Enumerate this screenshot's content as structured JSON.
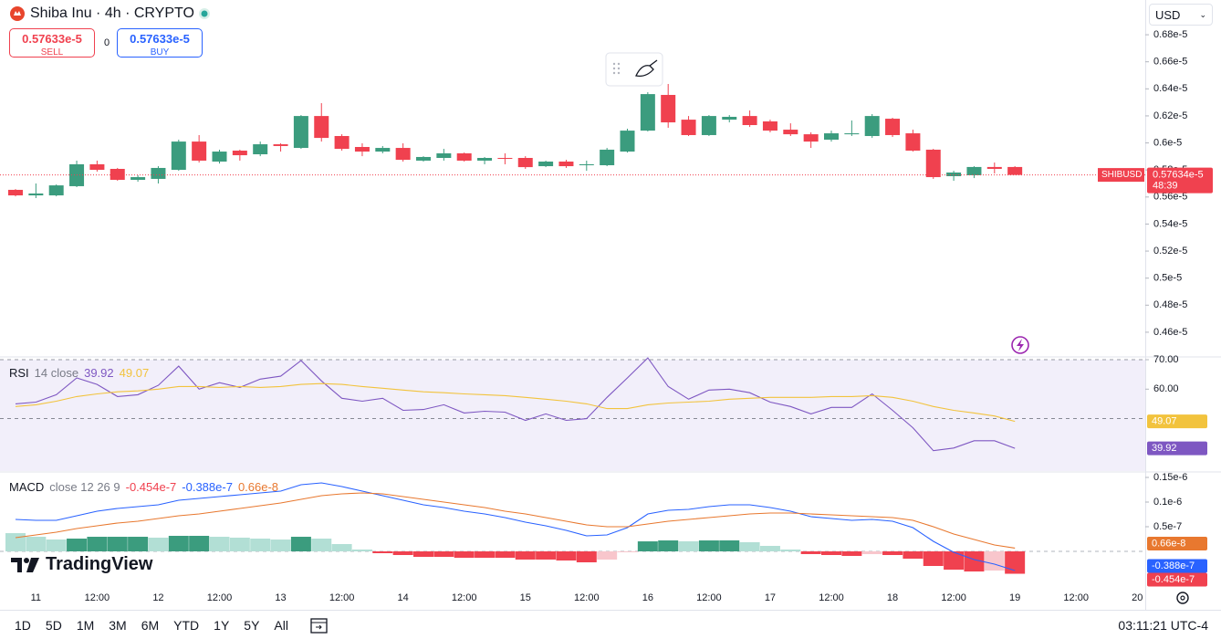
{
  "header": {
    "symbol": "Shiba Inu · 4h · CRYPTO",
    "sell_price": "0.57633e-5",
    "sell_label": "SELL",
    "spread": "0",
    "buy_price": "0.57633e-5",
    "buy_label": "BUY",
    "currency": "USD"
  },
  "watermark": "TradingView",
  "toolbar": {
    "ranges": [
      "1D",
      "5D",
      "1M",
      "3M",
      "6M",
      "YTD",
      "1Y",
      "5Y",
      "All"
    ],
    "clock": "03:11:21 UTC-4"
  },
  "chart_data": [
    {
      "type": "candlestick",
      "up_color": "#3b9c7e",
      "down_color": "#f0414f",
      "categories": [
        null,
        "11",
        null,
        null,
        "12:00",
        null,
        null,
        "12",
        null,
        null,
        "12:00",
        null,
        null,
        "13",
        null,
        null,
        "12:00",
        null,
        null,
        "14",
        null,
        null,
        "12:00",
        null,
        null,
        "15",
        null,
        null,
        "12:00",
        null,
        null,
        "16",
        null,
        null,
        "12:00",
        null,
        null,
        "17",
        null,
        null,
        "12:00",
        null,
        null,
        "18",
        null,
        null,
        "12:00",
        null,
        null,
        "19",
        null,
        null,
        "12:00",
        null,
        null,
        "20"
      ],
      "open": [
        5.653e-06,
        5.612e-06,
        5.612e-06,
        5.68e-06,
        5.842e-06,
        5.808e-06,
        5.727e-06,
        5.734e-06,
        5.801e-06,
        6.01e-06,
        5.862e-06,
        5.943e-06,
        5.916e-06,
        5.99e-06,
        5.963e-06,
        6.199e-06,
        6.051e-06,
        5.97e-06,
        5.936e-06,
        5.963e-06,
        5.869e-06,
        5.889e-06,
        5.923e-06,
        5.869e-06,
        5.889e-06,
        5.889e-06,
        5.828e-06,
        5.862e-06,
        5.835e-06,
        5.835e-06,
        5.936e-06,
        6.091e-06,
        6.355e-06,
        6.172e-06,
        6.058e-06,
        6.172e-06,
        6.199e-06,
        6.159e-06,
        6.098e-06,
        6.064e-06,
        6.024e-06,
        6.064e-06,
        6.051e-06,
        6.179e-06,
        6.071e-06,
        5.95e-06,
        5.754e-06,
        5.761e-06,
        5.822e-06,
        5.822e-06,
        null,
        null,
        null,
        null,
        null,
        null
      ],
      "high": [
        5.659e-06,
        5.7e-06,
        5.693e-06,
        5.869e-06,
        5.869e-06,
        5.815e-06,
        5.761e-06,
        5.828e-06,
        6.024e-06,
        6.058e-06,
        5.95e-06,
        5.95e-06,
        6.01e-06,
        5.997e-06,
        6.206e-06,
        6.294e-06,
        6.064e-06,
        5.997e-06,
        5.977e-06,
        5.997e-06,
        5.902e-06,
        5.956e-06,
        5.929e-06,
        5.896e-06,
        5.923e-06,
        5.902e-06,
        5.869e-06,
        5.875e-06,
        5.869e-06,
        5.963e-06,
        6.105e-06,
        6.375e-06,
        6.436e-06,
        6.199e-06,
        6.206e-06,
        6.206e-06,
        6.24e-06,
        6.172e-06,
        6.145e-06,
        6.078e-06,
        6.091e-06,
        6.166e-06,
        6.213e-06,
        6.186e-06,
        6.098e-06,
        5.956e-06,
        5.794e-06,
        5.828e-06,
        5.855e-06,
        5.828e-06,
        null,
        null,
        null,
        null,
        null,
        null
      ],
      "low": [
        5.605e-06,
        5.592e-06,
        5.605e-06,
        5.673e-06,
        5.788e-06,
        5.72e-06,
        5.713e-06,
        5.7e-06,
        5.794e-06,
        5.855e-06,
        5.848e-06,
        5.869e-06,
        5.902e-06,
        5.936e-06,
        5.956e-06,
        6.01e-06,
        5.943e-06,
        5.902e-06,
        5.923e-06,
        5.862e-06,
        5.862e-06,
        5.869e-06,
        5.862e-06,
        5.842e-06,
        5.842e-06,
        5.808e-06,
        5.821e-06,
        5.815e-06,
        5.794e-06,
        5.828e-06,
        5.929e-06,
        6.085e-06,
        6.112e-06,
        6.051e-06,
        6.051e-06,
        6.152e-06,
        6.118e-06,
        6.078e-06,
        6.051e-06,
        5.963e-06,
        6.01e-06,
        6.051e-06,
        6.037e-06,
        6.044e-06,
        5.936e-06,
        5.734e-06,
        5.72e-06,
        5.74e-06,
        5.774e-06,
        5.7634e-06,
        null,
        null,
        null,
        null,
        null,
        null
      ],
      "close": [
        5.612e-06,
        5.626e-06,
        5.686e-06,
        5.842e-06,
        5.801e-06,
        5.727e-06,
        5.747e-06,
        5.815e-06,
        6.01e-06,
        5.869e-06,
        5.936e-06,
        5.909e-06,
        5.99e-06,
        5.977e-06,
        6.199e-06,
        6.037e-06,
        5.956e-06,
        5.936e-06,
        5.963e-06,
        5.875e-06,
        5.896e-06,
        5.923e-06,
        5.869e-06,
        5.889e-06,
        5.882e-06,
        5.821e-06,
        5.862e-06,
        5.828e-06,
        5.842e-06,
        5.95e-06,
        6.091e-06,
        6.361e-06,
        6.152e-06,
        6.058e-06,
        6.199e-06,
        6.193e-06,
        6.132e-06,
        6.091e-06,
        6.064e-06,
        6.01e-06,
        6.071e-06,
        6.071e-06,
        6.199e-06,
        6.058e-06,
        5.943e-06,
        5.747e-06,
        5.781e-06,
        5.822e-06,
        5.808e-06,
        5.7634e-06,
        null,
        null,
        null,
        null,
        null,
        null
      ],
      "ylim": [
        4.424e-06,
        7.057e-06
      ],
      "yticks": [
        {
          "value": 6.8e-06,
          "label": "0.68e-5"
        },
        {
          "value": 6.6e-06,
          "label": "0.66e-5"
        },
        {
          "value": 6.4e-06,
          "label": "0.64e-5"
        },
        {
          "value": 6.2e-06,
          "label": "0.62e-5"
        },
        {
          "value": 6e-06,
          "label": "0.6e-5"
        },
        {
          "value": 5.8e-06,
          "label": "0.58e-5"
        },
        {
          "value": 5.6e-06,
          "label": "0.56e-5"
        },
        {
          "value": 5.4e-06,
          "label": "0.54e-5"
        },
        {
          "value": 5.2e-06,
          "label": "0.52e-5"
        },
        {
          "value": 5e-06,
          "label": "0.5e-5"
        },
        {
          "value": 4.8e-06,
          "label": "0.48e-5"
        },
        {
          "value": 4.6e-06,
          "label": "0.46e-5"
        }
      ],
      "last_price": {
        "value": 5.7634e-06,
        "label": "0.57634e-5"
      },
      "symbol_tag": "SHIBUSD",
      "countdown": "48:39"
    },
    {
      "type": "line",
      "title": "RSI",
      "params": "14 close",
      "ylim": [
        32.2,
        70.94
      ],
      "yticks": [
        {
          "value": 70,
          "label": "70.00"
        },
        {
          "value": 60,
          "label": "60.00"
        }
      ],
      "band": [
        30,
        70
      ],
      "hlines": [
        70,
        50
      ],
      "series": [
        {
          "color": "#7e57c2",
          "values": [
            55.0,
            55.6,
            58.1,
            63.8,
            61.6,
            57.5,
            58.1,
            61.3,
            67.8,
            60.0,
            62.2,
            60.6,
            63.4,
            64.4,
            69.7,
            62.8,
            56.9,
            55.9,
            56.9,
            52.8,
            53.1,
            54.7,
            51.9,
            52.5,
            52.2,
            49.4,
            51.6,
            49.4,
            50.0,
            57.2,
            63.8,
            70.6,
            60.9,
            56.6,
            59.7,
            60.0,
            58.8,
            55.6,
            54.1,
            51.6,
            53.8,
            53.8,
            58.4,
            52.8,
            46.9,
            39.1,
            40.0,
            42.5,
            42.5,
            39.92
          ]
        },
        {
          "color": "#f2c33d",
          "values": [
            54.1,
            54.7,
            55.9,
            57.5,
            58.4,
            59.1,
            59.4,
            60.0,
            60.9,
            60.9,
            60.6,
            60.9,
            60.6,
            60.9,
            61.6,
            61.9,
            61.6,
            60.9,
            60.3,
            59.7,
            59.1,
            58.8,
            58.4,
            58.1,
            57.8,
            57.2,
            56.6,
            55.9,
            55.0,
            53.4,
            53.4,
            54.7,
            55.3,
            55.6,
            55.9,
            56.6,
            56.9,
            57.2,
            57.2,
            57.2,
            57.5,
            57.5,
            57.8,
            57.2,
            55.9,
            54.1,
            52.8,
            51.9,
            50.9,
            49.07
          ]
        }
      ]
    },
    {
      "type": "macd",
      "title": "MACD",
      "params": "close 12 26 9",
      "ylim": [
        -7.22e-08,
        1.611e-07
      ],
      "yticks": [
        {
          "value": 1.5e-07,
          "label": "0.15e-6"
        },
        {
          "value": 1e-07,
          "label": "0.1e-6"
        },
        {
          "value": 5e-08,
          "label": "0.5e-7"
        }
      ],
      "histogram": {
        "colors": [
          "#3b9c7e",
          "#b2dfd5",
          "#f0414f",
          "#f8c6cc"
        ],
        "last_label": "-0.454e-7",
        "values": [
          3.7e-08,
          2.97e-08,
          2.41e-08,
          2.59e-08,
          2.96e-08,
          2.96e-08,
          2.96e-08,
          2.78e-08,
          3.15e-08,
          3.15e-08,
          2.96e-08,
          2.78e-08,
          2.59e-08,
          2.4e-08,
          2.96e-08,
          2.59e-08,
          1.48e-08,
          3.7e-09,
          -3.7e-09,
          -7.4e-09,
          -1.11e-08,
          -1.11e-08,
          -1.3e-08,
          -1.3e-08,
          -1.3e-08,
          -1.66e-08,
          -1.66e-08,
          -1.85e-08,
          -2.22e-08,
          -1.67e-08,
          -1.8e-09,
          2.03e-08,
          2.22e-08,
          2.04e-08,
          2.22e-08,
          2.23e-08,
          1.86e-08,
          1.11e-08,
          3.7e-09,
          -5.5e-09,
          -7.4e-09,
          -9.2e-09,
          -5.6e-09,
          -7.4e-09,
          -1.48e-08,
          -2.96e-08,
          -3.71e-08,
          -4.08e-08,
          -3.89e-08,
          -4.54e-08
        ]
      },
      "series": [
        {
          "color": "#2962ff",
          "last_label": "-0.388e-7",
          "values": [
            6.48e-08,
            6.3e-08,
            6.3e-08,
            7.22e-08,
            8.15e-08,
            8.7e-08,
            9.07e-08,
            9.45e-08,
            1.037e-07,
            1.074e-07,
            1.111e-07,
            1.148e-07,
            1.185e-07,
            1.222e-07,
            1.352e-07,
            1.389e-07,
            1.315e-07,
            1.222e-07,
            1.13e-07,
            1.037e-07,
            9.45e-08,
            8.89e-08,
            8.15e-08,
            7.59e-08,
            6.85e-08,
            5.93e-08,
            5.19e-08,
            4.26e-08,
            3.15e-08,
            3.33e-08,
            4.82e-08,
            7.59e-08,
            8.33e-08,
            8.52e-08,
            9.07e-08,
            9.45e-08,
            9.45e-08,
            8.89e-08,
            8.15e-08,
            7.04e-08,
            6.67e-08,
            6.3e-08,
            6.48e-08,
            6.11e-08,
            4.82e-08,
            2.04e-08,
            -1.9e-09,
            -1.67e-08,
            -2.59e-08,
            -3.88e-08
          ]
        },
        {
          "color": "#e8782f",
          "last_label": "0.66e-8",
          "values": [
            2.78e-08,
            3.33e-08,
            3.89e-08,
            4.63e-08,
            5.19e-08,
            5.74e-08,
            6.11e-08,
            6.67e-08,
            7.22e-08,
            7.59e-08,
            8.15e-08,
            8.7e-08,
            9.26e-08,
            9.82e-08,
            1.056e-07,
            1.13e-07,
            1.167e-07,
            1.185e-07,
            1.167e-07,
            1.111e-07,
            1.056e-07,
            1e-07,
            9.45e-08,
            8.89e-08,
            8.15e-08,
            7.59e-08,
            6.85e-08,
            6.11e-08,
            5.37e-08,
            5e-08,
            5e-08,
            5.56e-08,
            6.11e-08,
            6.48e-08,
            6.85e-08,
            7.22e-08,
            7.59e-08,
            7.78e-08,
            7.78e-08,
            7.59e-08,
            7.41e-08,
            7.22e-08,
            7.04e-08,
            6.85e-08,
            6.3e-08,
            5e-08,
            3.52e-08,
            2.41e-08,
            1.3e-08,
            6.6e-09
          ]
        }
      ]
    }
  ]
}
